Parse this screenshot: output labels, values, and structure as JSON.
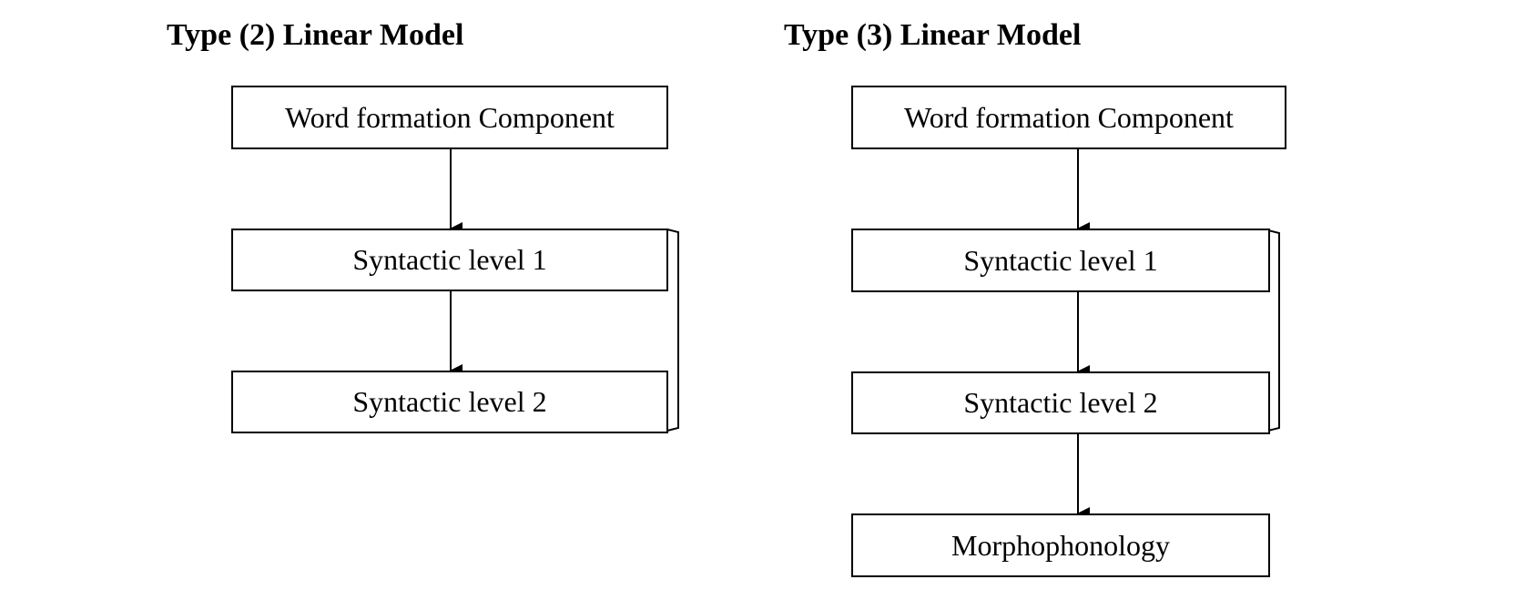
{
  "models": [
    {
      "title": "Type (2) Linear Model",
      "boxes": [
        "Word formation Component",
        "Syntactic level 1",
        "Syntactic level 2"
      ]
    },
    {
      "title": "Type (3) Linear Model",
      "boxes": [
        "Word formation Component",
        "Syntactic level 1",
        "Syntactic level 2",
        "Morphophonology"
      ]
    }
  ],
  "colors": {
    "stroke": "#000000",
    "background": "#ffffff"
  }
}
